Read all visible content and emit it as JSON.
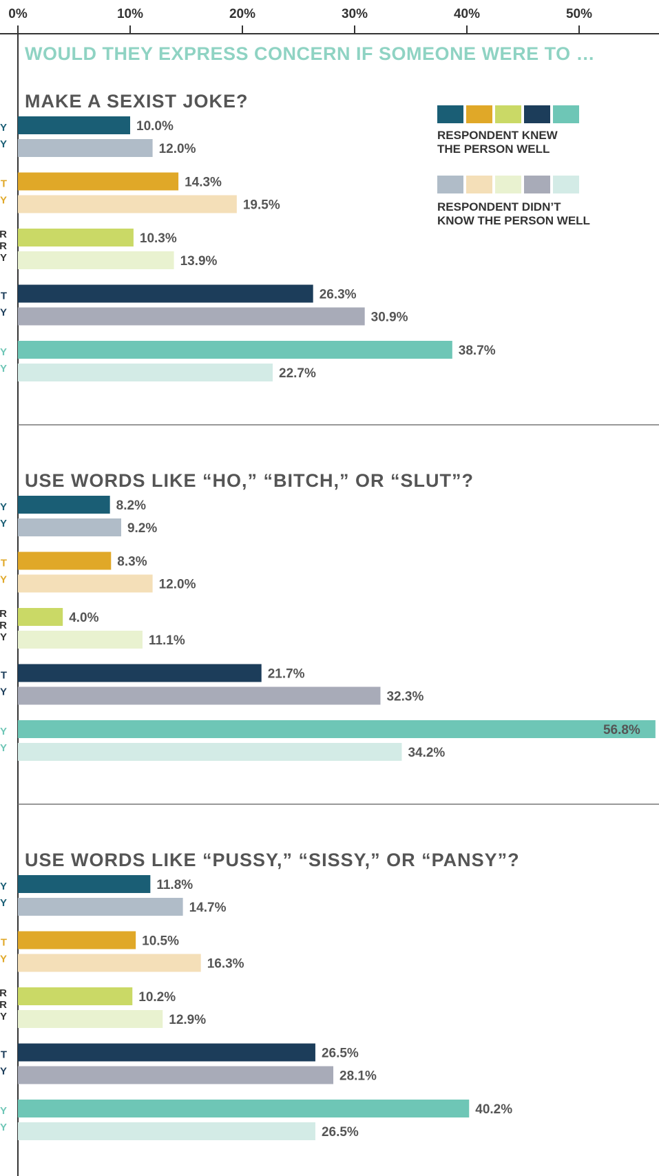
{
  "chart_data": {
    "type": "bar",
    "orientation": "horizontal",
    "title": "WOULD THEY EXPRESS CONCERN IF SOMEONE WERE TO …",
    "x_ticks": [
      "0%",
      "10%",
      "20%",
      "30%",
      "40%",
      "50%"
    ],
    "xlim": [
      0,
      57.5
    ],
    "colors": {
      "knew": [
        "#1a5e75",
        "#e0a828",
        "#cad966",
        "#1c3d5a",
        "#6ec6b6"
      ],
      "didnt_know": [
        "#b0bcc8",
        "#f4dfb8",
        "#e9f2d0",
        "#a8abb8",
        "#d3ebe6"
      ],
      "cat_label": [
        "#1a5e75",
        "#e0a828",
        "#333333",
        "#1c3d5a",
        "#6ec6b6"
      ]
    },
    "category_label_fragments": [
      [
        "Y",
        "Y"
      ],
      [
        "T",
        "Y"
      ],
      [
        "R",
        "R",
        "Y"
      ],
      [
        "T",
        "Y"
      ],
      [
        "Y",
        "Y"
      ]
    ],
    "legend": {
      "knew_label": [
        "RESPONDENT KNEW",
        "THE PERSON WELL"
      ],
      "didnt_label": [
        "RESPONDENT DIDN’T",
        "KNOW THE PERSON WELL"
      ],
      "placement": "top-right of first panel"
    },
    "panels": [
      {
        "title": "MAKE A SEXIST JOKE?",
        "knew": [
          10.0,
          14.3,
          10.3,
          26.3,
          38.7
        ],
        "knew_labels": [
          "10.0%",
          "14.3%",
          "10.3%",
          "26.3%",
          "38.7%"
        ],
        "didnt": [
          12.0,
          19.5,
          13.9,
          30.9,
          22.7
        ],
        "didnt_labels": [
          "12.0%",
          "19.5%",
          "13.9%",
          "30.9%",
          "22.7%"
        ]
      },
      {
        "title": "USE WORDS LIKE “HO,” “BITCH,” OR “SLUT”?",
        "knew": [
          8.2,
          8.3,
          4.0,
          21.7,
          56.8
        ],
        "knew_labels": [
          "8.2%",
          "8.3%",
          "4.0%",
          "21.7%",
          "56.8%"
        ],
        "didnt": [
          9.2,
          12.0,
          11.1,
          32.3,
          34.2
        ],
        "didnt_labels": [
          "9.2%",
          "12.0%",
          "11.1%",
          "32.3%",
          "34.2%"
        ]
      },
      {
        "title": "USE WORDS LIKE “PUSSY,” “SISSY,” OR “PANSY”?",
        "knew": [
          11.8,
          10.5,
          10.2,
          26.5,
          40.2
        ],
        "knew_labels": [
          "11.8%",
          "10.5%",
          "10.2%",
          "26.5%",
          "40.2%"
        ],
        "didnt": [
          14.7,
          16.3,
          12.9,
          28.1,
          26.5
        ],
        "didnt_labels": [
          "14.7%",
          "16.3%",
          "12.9%",
          "28.1%",
          "26.5%"
        ]
      }
    ]
  }
}
